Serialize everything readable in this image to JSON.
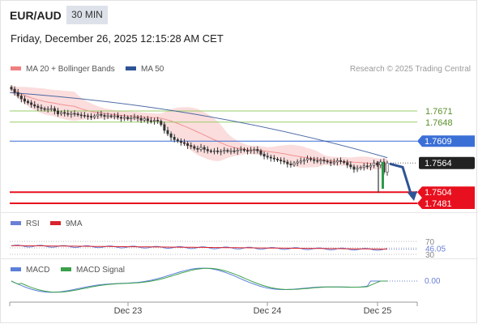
{
  "header": {
    "pair": "EUR/AUD",
    "timeframe": "30 MIN",
    "datetime": "Friday, December 26, 2025 12:15:28 AM CET"
  },
  "legend": {
    "ma20": "MA 20 + Bollinger Bands",
    "ma50": "MA 50",
    "credit": "Research © 2025 Trading Central",
    "rsi": "RSI",
    "rsi_ma": "9MA",
    "macd": "MACD",
    "macd_signal": "MACD Signal"
  },
  "colors": {
    "ma20": "#f08080",
    "ma50": "#2f5496",
    "bollinger_fill": "#fbd9d9",
    "resistance": "#9acd68",
    "pivot": "#3a6fd6",
    "support": "#e8101e",
    "price_box": "#222222",
    "rsi": "#6a7fd6",
    "rsi_ma": "#d9232e",
    "macd": "#5b7fd9",
    "macd_signal": "#3aa04a",
    "forecast_arrow": "#2f5496"
  },
  "chart_data": [
    {
      "type": "candlestick",
      "panel": "price",
      "x_tick_labels": [
        "Dec 23",
        "Dec 24",
        "Dec 25"
      ],
      "levels": [
        {
          "value": 1.7671,
          "label": "1.7671",
          "kind": "resistance"
        },
        {
          "value": 1.7648,
          "label": "1.7648",
          "kind": "resistance"
        },
        {
          "value": 1.7609,
          "label": "1.7609",
          "kind": "pivot"
        },
        {
          "value": 1.7564,
          "label": "1.7564",
          "kind": "last_price"
        },
        {
          "value": 1.7504,
          "label": "1.7504",
          "kind": "support"
        },
        {
          "value": 1.7481,
          "label": "1.7481",
          "kind": "support"
        }
      ],
      "close_series": [
        1.7716,
        1.7709,
        1.7702,
        1.7696,
        1.7691,
        1.7688,
        1.7684,
        1.7681,
        1.7678,
        1.7676,
        1.7674,
        1.7675,
        1.7676,
        1.7671,
        1.7665,
        1.7668,
        1.7666,
        1.7664,
        1.7666,
        1.7665,
        1.7663,
        1.7662,
        1.7661,
        1.766,
        1.7658,
        1.7661,
        1.7664,
        1.7662,
        1.766,
        1.7661,
        1.766,
        1.7661,
        1.7658,
        1.7656,
        1.7658,
        1.7655,
        1.7657,
        1.7658,
        1.7656,
        1.7652,
        1.7655,
        1.7651,
        1.765,
        1.7652,
        1.765,
        1.7643,
        1.7631,
        1.7624,
        1.7617,
        1.7612,
        1.7609,
        1.7606,
        1.7604,
        1.76,
        1.7598,
        1.7594,
        1.7592,
        1.7596,
        1.7592,
        1.7589,
        1.7588,
        1.7589,
        1.7587,
        1.7588,
        1.759,
        1.7588,
        1.7589,
        1.7588,
        1.759,
        1.7592,
        1.759,
        1.7588,
        1.759,
        1.7592,
        1.7589,
        1.7582,
        1.7578,
        1.7576,
        1.7574,
        1.7572,
        1.757,
        1.7568,
        1.7566,
        1.7562,
        1.756,
        1.7564,
        1.7566,
        1.7568,
        1.757,
        1.7573,
        1.7571,
        1.7569,
        1.7568,
        1.757,
        1.7568,
        1.7566,
        1.7564,
        1.7566,
        1.7569,
        1.7567,
        1.7565,
        1.756,
        1.7556,
        1.7551,
        1.7553,
        1.7555,
        1.7558,
        1.7556,
        1.7559,
        1.7564,
        1.756,
        1.7566,
        1.7545,
        1.7564
      ],
      "ma50_start": 1.7709,
      "ma50_end": 1.7575
    },
    {
      "type": "line",
      "panel": "rsi",
      "series": [
        {
          "name": "RSI"
        },
        {
          "name": "9MA"
        }
      ],
      "reference_levels": [
        70,
        50,
        30
      ],
      "ticks_shown": [
        "70",
        "30"
      ],
      "last_value": 46.05,
      "last_value_label": "46.05"
    },
    {
      "type": "line",
      "panel": "macd",
      "series": [
        {
          "name": "MACD"
        },
        {
          "name": "MACD Signal"
        }
      ],
      "last_value": 0.0,
      "last_value_label": "0.00"
    }
  ]
}
